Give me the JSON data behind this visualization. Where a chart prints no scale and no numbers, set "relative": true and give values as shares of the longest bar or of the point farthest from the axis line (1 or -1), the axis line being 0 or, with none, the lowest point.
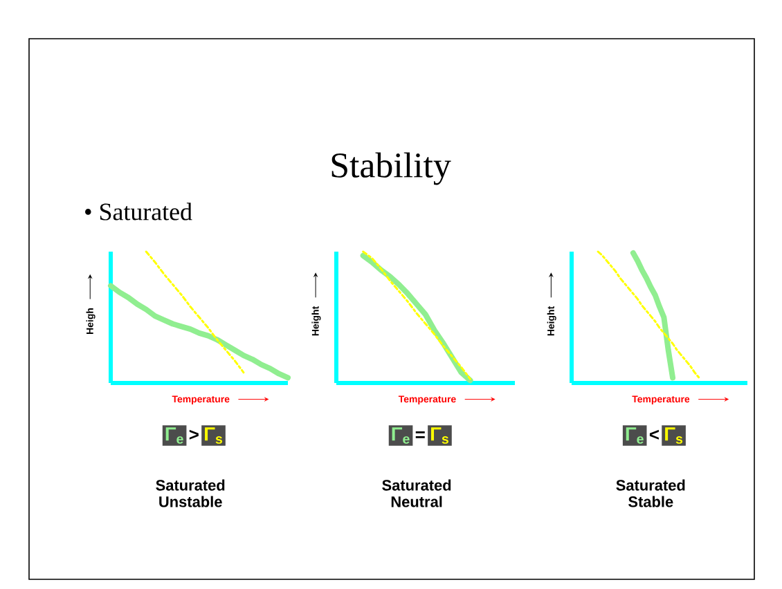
{
  "chart_data": [
    {
      "type": "other",
      "title": "Stability",
      "subtitle": "• Saturated"
    },
    {
      "type": "line",
      "relative": true,
      "xlabel": "Temperature",
      "ylabel": "Heigh",
      "marker": "none",
      "categories": [
        null,
        null,
        null,
        null,
        null,
        null,
        null,
        null,
        null,
        null,
        null,
        null,
        null,
        null,
        null,
        null,
        null,
        null,
        null,
        null,
        null
      ],
      "series": [
        {
          "name": "Γ$_{e}$",
          "color": "#90ee90",
          "line_style": "solid",
          "values": [
            0.74,
            0.69,
            0.65,
            0.6,
            0.56,
            0.51,
            0.48,
            0.45,
            0.43,
            0.41,
            0.38,
            0.36,
            0.33,
            0.29,
            0.25,
            0.21,
            0.18,
            0.14,
            0.11,
            0.07,
            0.04
          ]
        },
        {
          "name": "Γ$_{s}$",
          "color": "#ffff00",
          "line_style": "dashdot",
          "values": [
            null,
            null,
            null,
            null,
            1,
            0.92,
            0.83,
            0.75,
            0.67,
            0.58,
            0.5,
            0.42,
            0.33,
            0.25,
            0.17,
            0.08,
            null,
            null,
            null,
            null,
            null
          ]
        }
      ],
      "annotations": [
        ">",
        "Saturated Unstable"
      ]
    },
    {
      "type": "line",
      "relative": true,
      "xlabel": "Temperature",
      "ylabel": "Height",
      "marker": "none",
      "categories": [
        null,
        null,
        null,
        null,
        null,
        null,
        null,
        null,
        null,
        null,
        null,
        null,
        null,
        null,
        null,
        null,
        null,
        null,
        null,
        null,
        null
      ],
      "series": [
        {
          "name": "Γ$_{e}$",
          "color": "#90ee90",
          "line_style": "solid",
          "values": [
            null,
            null,
            null,
            0.97,
            0.92,
            0.86,
            0.81,
            0.75,
            0.68,
            0.6,
            0.52,
            0.4,
            0.3,
            0.19,
            0.08,
            0.02,
            null,
            null,
            null,
            null,
            null
          ]
        },
        {
          "name": "Γ$_{s}$",
          "color": "#ffff00",
          "line_style": "dashdot",
          "values": [
            null,
            null,
            null,
            1,
            0.95,
            0.87,
            0.78,
            0.7,
            0.62,
            0.53,
            0.45,
            0.37,
            0.28,
            0.2,
            0.12,
            0.03,
            null,
            null,
            null,
            null,
            null
          ]
        }
      ],
      "annotations": [
        "=",
        "Saturated Neutral"
      ]
    },
    {
      "type": "line",
      "relative": true,
      "xlabel": "Temperature",
      "ylabel": "Height",
      "marker": "none",
      "categories": [
        null,
        null,
        null,
        null,
        null,
        null,
        null,
        null,
        null,
        null,
        null,
        null,
        null,
        null,
        null,
        null,
        null,
        null,
        null,
        null,
        null,
        null,
        null,
        null,
        null,
        null,
        null,
        null,
        null,
        null,
        null,
        null,
        null,
        null,
        null,
        null,
        null,
        null,
        null,
        null,
        null
      ],
      "series": [
        {
          "name": "Γ$_{e}$",
          "color": "#90ee90",
          "line_style": "solid",
          "values": [
            null,
            null,
            null,
            null,
            null,
            null,
            null,
            null,
            null,
            null,
            null,
            null,
            null,
            null,
            0.99,
            0.93,
            0.86,
            0.8,
            0.73,
            0.67,
            0.58,
            0.5,
            0.25,
            0.04,
            null,
            null,
            null,
            null,
            null,
            null,
            null,
            null,
            null,
            null,
            null,
            null,
            null,
            null,
            null,
            null,
            null
          ]
        },
        {
          "name": "Γ$_{s}$",
          "color": "#ffff00",
          "line_style": "dashdot",
          "values": [
            null,
            null,
            null,
            null,
            null,
            null,
            1,
            0.97,
            0.93,
            0.89,
            0.85,
            0.8,
            0.76,
            0.72,
            0.68,
            0.64,
            0.59,
            0.55,
            0.51,
            0.47,
            0.42,
            0.38,
            0.34,
            0.3,
            0.25,
            0.21,
            0.17,
            0.13,
            0.08,
            0.04,
            null,
            null,
            null,
            null,
            null,
            null,
            null,
            null,
            null,
            null,
            null
          ]
        }
      ],
      "annotations": [
        "<",
        "Saturated Stable"
      ]
    }
  ]
}
